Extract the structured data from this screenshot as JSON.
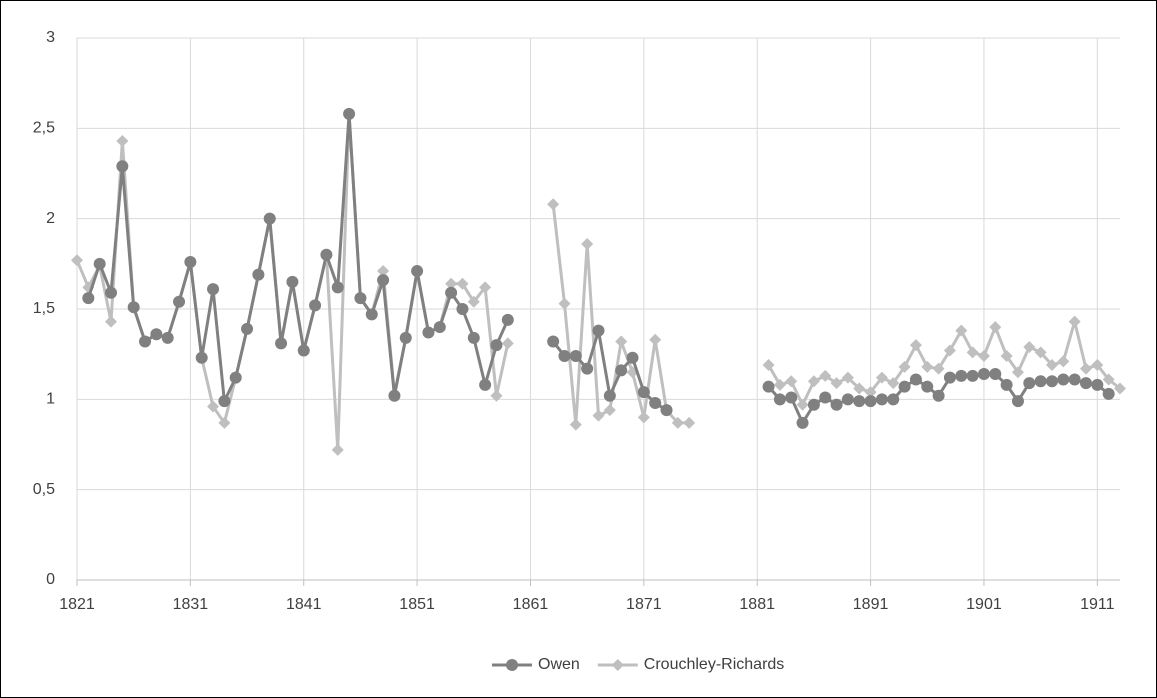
{
  "chart_data": {
    "type": "line",
    "x": [
      1821,
      1822,
      1823,
      1824,
      1825,
      1826,
      1827,
      1828,
      1829,
      1830,
      1831,
      1832,
      1833,
      1834,
      1835,
      1836,
      1837,
      1838,
      1839,
      1840,
      1841,
      1842,
      1843,
      1844,
      1845,
      1846,
      1847,
      1848,
      1849,
      1850,
      1851,
      1852,
      1853,
      1854,
      1855,
      1856,
      1857,
      1858,
      1859,
      1860,
      1861,
      1862,
      1863,
      1864,
      1865,
      1866,
      1867,
      1868,
      1869,
      1870,
      1871,
      1872,
      1873,
      1874,
      1875,
      1876,
      1877,
      1878,
      1879,
      1880,
      1881,
      1882,
      1883,
      1884,
      1885,
      1886,
      1887,
      1888,
      1889,
      1890,
      1891,
      1892,
      1893,
      1894,
      1895,
      1896,
      1897,
      1898,
      1899,
      1900,
      1901,
      1902,
      1903,
      1904,
      1905,
      1906,
      1907,
      1908,
      1909,
      1910,
      1911,
      1912,
      1913
    ],
    "series": [
      {
        "name": "Crouchley-Richards",
        "color": "#bfbfbf",
        "marker": "diamond",
        "values": [
          1.77,
          1.62,
          1.74,
          1.43,
          2.43,
          1.51,
          1.32,
          1.36,
          1.34,
          1.54,
          1.76,
          1.23,
          0.96,
          0.87,
          1.12,
          1.39,
          1.69,
          2.0,
          1.31,
          1.65,
          1.27,
          1.52,
          1.8,
          0.72,
          2.58,
          1.56,
          1.47,
          1.71,
          1.03,
          1.34,
          1.71,
          1.37,
          1.4,
          1.64,
          1.64,
          1.54,
          1.62,
          1.02,
          1.31,
          null,
          null,
          null,
          2.08,
          1.53,
          0.86,
          1.86,
          0.91,
          0.94,
          1.32,
          1.15,
          0.9,
          1.33,
          0.94,
          0.87,
          0.87,
          null,
          null,
          null,
          null,
          null,
          null,
          1.19,
          1.08,
          1.1,
          0.97,
          1.1,
          1.13,
          1.09,
          1.12,
          1.06,
          1.04,
          1.12,
          1.09,
          1.18,
          1.3,
          1.18,
          1.17,
          1.27,
          1.38,
          1.26,
          1.24,
          1.4,
          1.24,
          1.15,
          1.29,
          1.26,
          1.19,
          1.21,
          1.43,
          1.17,
          1.19,
          1.11,
          1.06
        ]
      },
      {
        "name": "Owen",
        "color": "#808080",
        "marker": "circle",
        "values": [
          null,
          1.56,
          1.75,
          1.59,
          2.29,
          1.51,
          1.32,
          1.36,
          1.34,
          1.54,
          1.76,
          1.23,
          1.61,
          0.99,
          1.12,
          1.39,
          1.69,
          2.0,
          1.31,
          1.65,
          1.27,
          1.52,
          1.8,
          1.62,
          2.58,
          1.56,
          1.47,
          1.66,
          1.02,
          1.34,
          1.71,
          1.37,
          1.4,
          1.59,
          1.5,
          1.34,
          1.08,
          1.3,
          1.44,
          null,
          null,
          null,
          1.32,
          1.24,
          1.24,
          1.17,
          1.38,
          1.02,
          1.16,
          1.23,
          1.04,
          0.98,
          0.94,
          null,
          null,
          null,
          null,
          null,
          null,
          null,
          null,
          1.07,
          1.0,
          1.01,
          0.87,
          0.97,
          1.01,
          0.97,
          1.0,
          0.99,
          0.99,
          1.0,
          1.0,
          1.07,
          1.11,
          1.07,
          1.02,
          1.12,
          1.13,
          1.13,
          1.14,
          1.14,
          1.08,
          0.99,
          1.09,
          1.1,
          1.1,
          1.11,
          1.11,
          1.09,
          1.08,
          1.03,
          null
        ]
      }
    ],
    "legend_order": [
      "Owen",
      "Crouchley-Richards"
    ],
    "xlim": [
      1821,
      1913
    ],
    "xticks": [
      1821,
      1831,
      1841,
      1851,
      1861,
      1871,
      1881,
      1891,
      1901,
      1911
    ],
    "ylim": [
      0,
      3
    ],
    "yticks": [
      0,
      {
        "value": 0.5,
        "label": "0,5"
      },
      1,
      {
        "value": 1.5,
        "label": "1,5"
      },
      2,
      {
        "value": 2.5,
        "label": "2,5"
      },
      3
    ],
    "grid": true,
    "legend": "bottom"
  }
}
